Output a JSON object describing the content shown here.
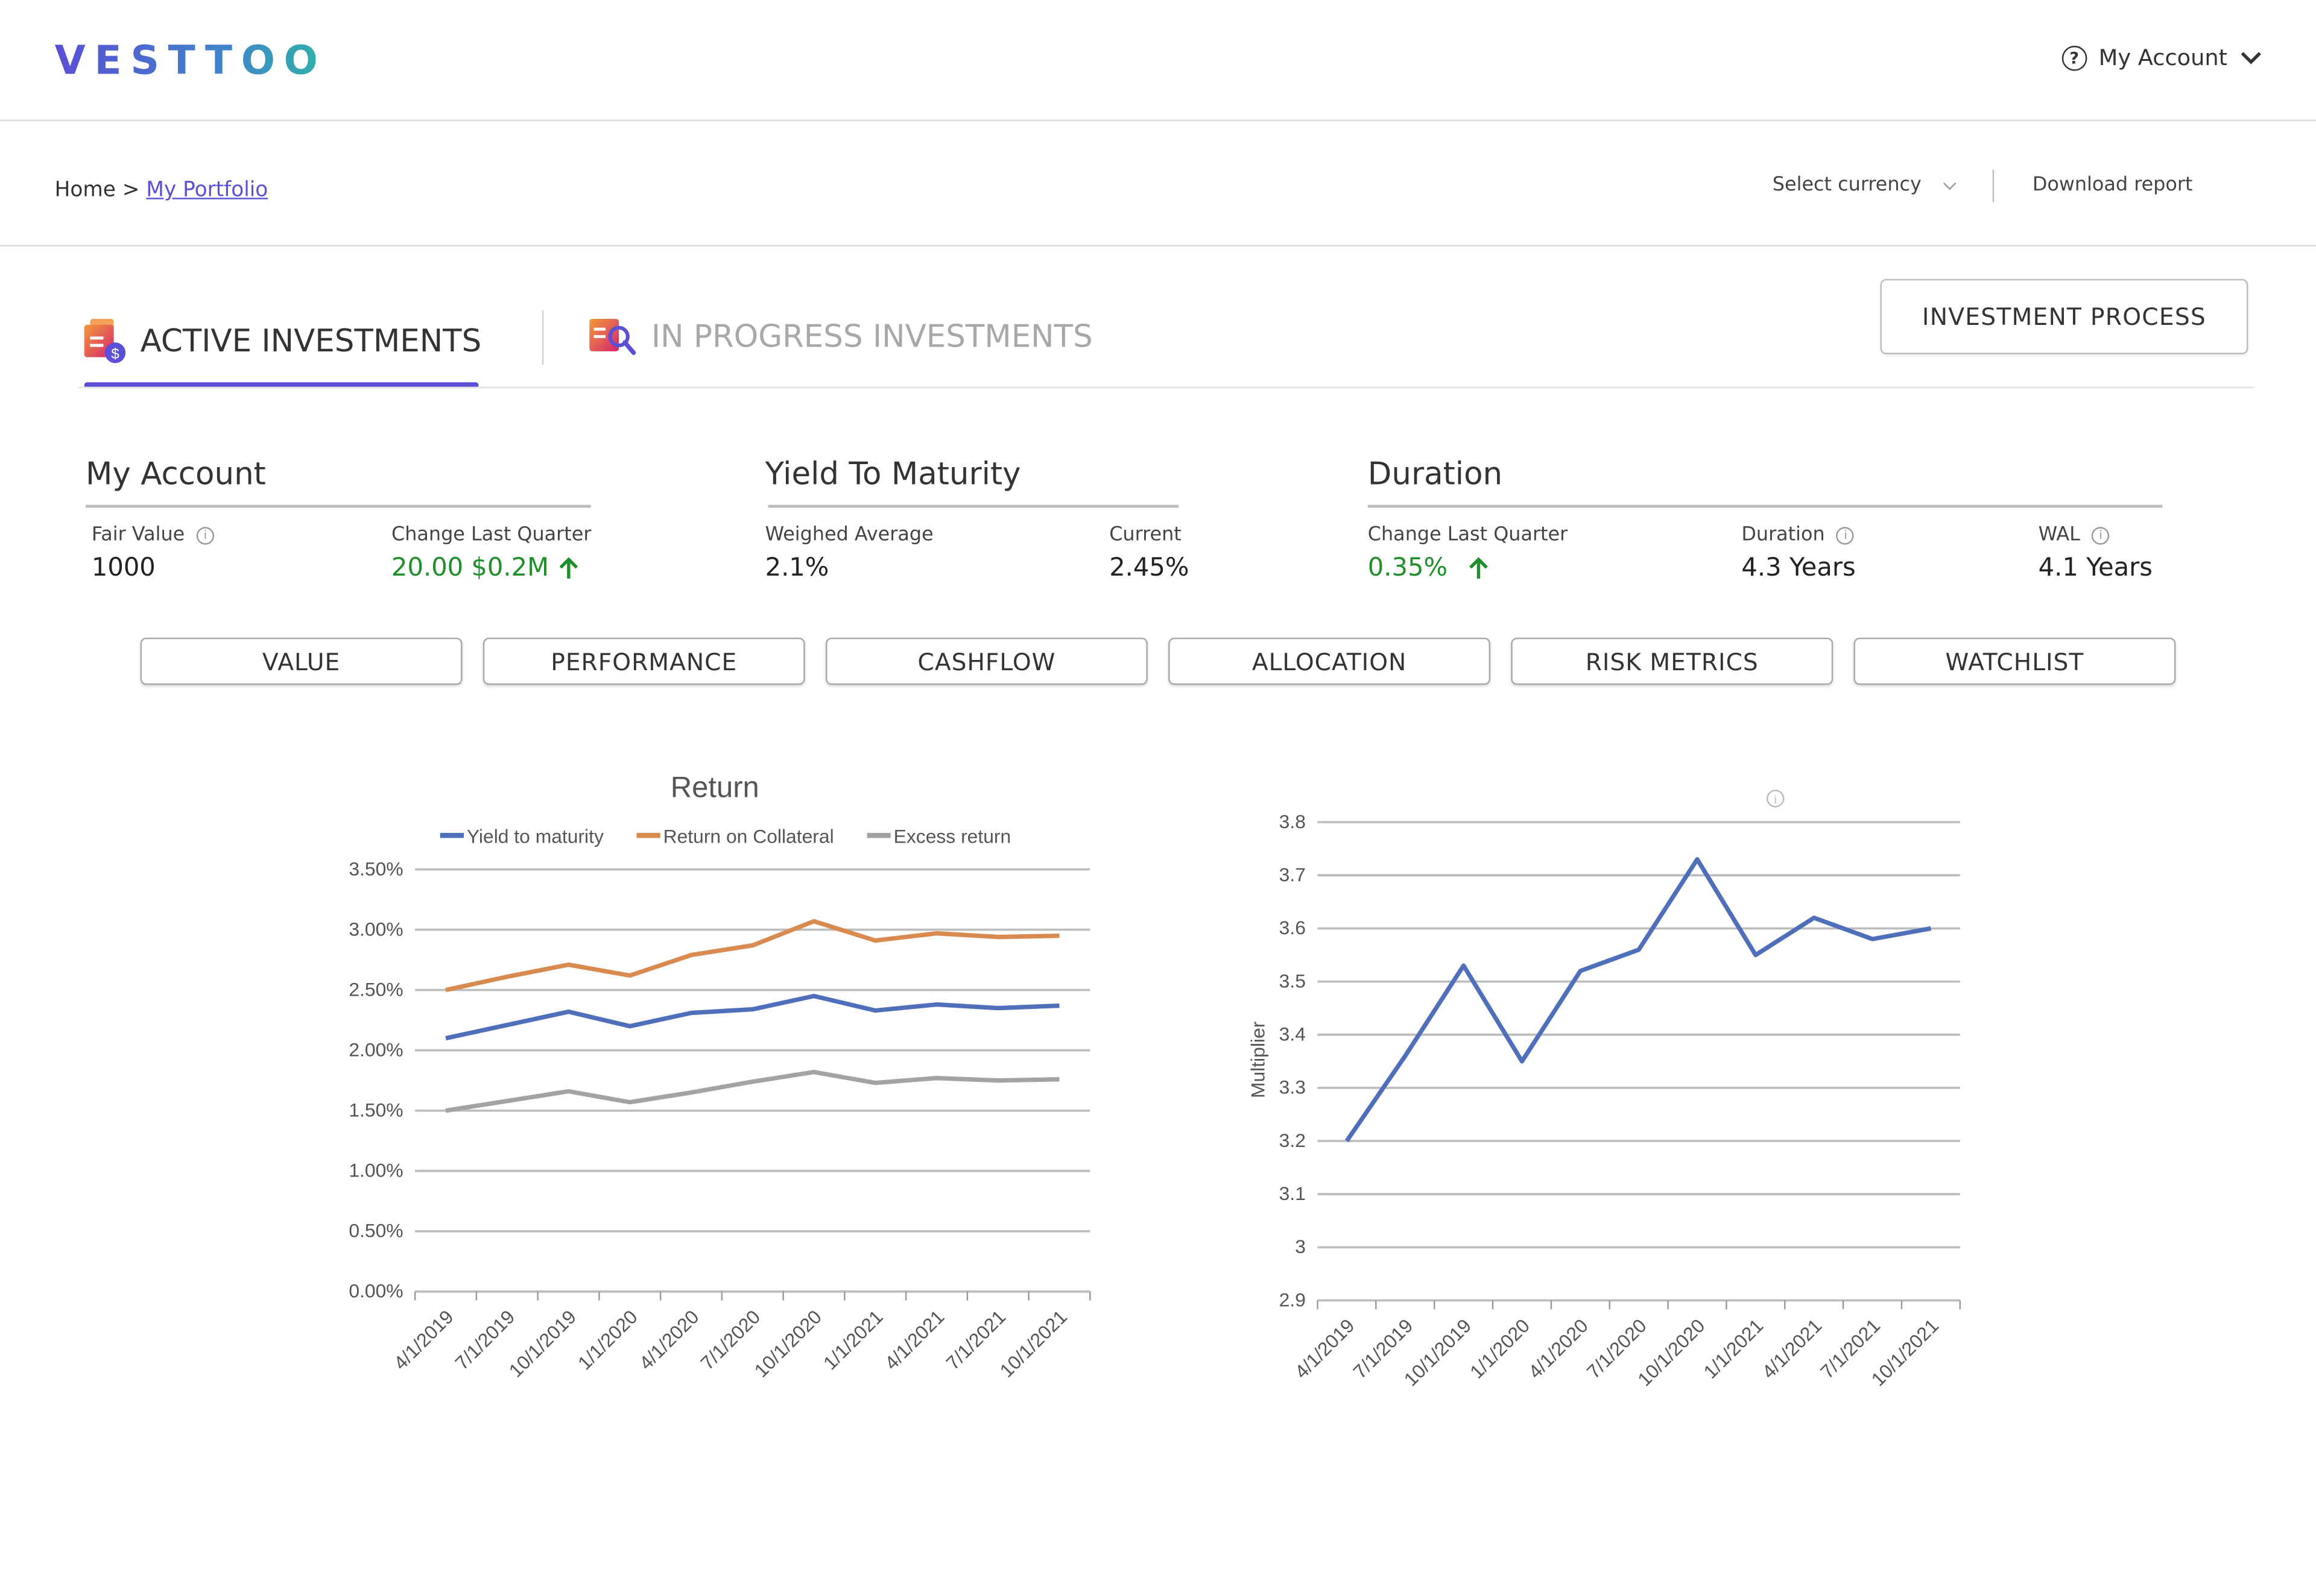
{
  "header": {
    "logo": "VESTTOO",
    "help_glyph": "?",
    "account_label": "My Account"
  },
  "breadcrumb": {
    "home": "Home",
    "sep": ">",
    "current": "My Portfolio"
  },
  "toolbar": {
    "currency_placeholder": "Select currency",
    "download_label": "Download report"
  },
  "tabs": {
    "active_label": "ACTIVE INVESTMENTS",
    "other_label": "IN PROGRESS INVESTMENTS",
    "process_button": "INVESTMENT PROCESS"
  },
  "summary": {
    "my_account": {
      "title": "My Account",
      "fair_value_label": "Fair Value",
      "fair_value": "1000",
      "change_label": "Change Last Quarter",
      "change_value": "20.00 $0.2M"
    },
    "ytm": {
      "title": "Yield To Maturity",
      "weighted_label": "Weighed Average",
      "weighted_value": "2.1%",
      "current_label": "Current",
      "current_value": "2.45%"
    },
    "duration": {
      "title": "Duration",
      "change_label": "Change Last Quarter",
      "change_value": "0.35%",
      "duration_label": "Duration",
      "duration_value": "4.3 Years",
      "wal_label": "WAL",
      "wal_value": "4.1 Years"
    }
  },
  "view_tabs": [
    "VALUE",
    "PERFORMANCE",
    "CASHFLOW",
    "ALLOCATION",
    "RISK METRICS",
    "WATCHLIST"
  ],
  "colors": {
    "accent": "#5a4fd6",
    "positive": "#1f8f2a",
    "series_ytm": "#4f6fbb",
    "series_collateral": "#d98a4e",
    "series_excess": "#a3a3a3"
  },
  "chart_data": [
    {
      "type": "line",
      "title": "Return",
      "x": [
        "4/1/2019",
        "7/1/2019",
        "10/1/2019",
        "1/1/2020",
        "4/1/2020",
        "7/1/2020",
        "10/1/2020",
        "1/1/2021",
        "4/1/2021",
        "7/1/2021",
        "10/1/2021"
      ],
      "series": [
        {
          "name": "Yield to maturity",
          "values": [
            2.1,
            2.21,
            2.32,
            2.2,
            2.31,
            2.34,
            2.45,
            2.33,
            2.38,
            2.35,
            2.37
          ]
        },
        {
          "name": "Return on Collateral",
          "values": [
            2.5,
            2.61,
            2.71,
            2.62,
            2.79,
            2.87,
            3.07,
            2.91,
            2.97,
            2.94,
            2.95
          ]
        },
        {
          "name": "Excess return",
          "values": [
            1.5,
            1.58,
            1.66,
            1.57,
            1.65,
            1.74,
            1.82,
            1.73,
            1.77,
            1.75,
            1.76
          ]
        }
      ],
      "y_ticks": [
        "0.00%",
        "0.50%",
        "1.00%",
        "1.50%",
        "2.00%",
        "2.50%",
        "3.00%",
        "3.50%"
      ],
      "ylim": [
        0,
        3.5
      ],
      "grid": true,
      "legend": "top"
    },
    {
      "type": "line",
      "title": "",
      "ylabel": "Multiplier",
      "x": [
        "4/1/2019",
        "7/1/2019",
        "10/1/2019",
        "1/1/2020",
        "4/1/2020",
        "7/1/2020",
        "10/1/2020",
        "1/1/2021",
        "4/1/2021",
        "7/1/2021",
        "10/1/2021"
      ],
      "series": [
        {
          "values": [
            3.2,
            3.36,
            3.53,
            3.35,
            3.52,
            3.56,
            3.73,
            3.55,
            3.62,
            3.58,
            3.6
          ]
        }
      ],
      "y_ticks": [
        "2.9",
        "3",
        "3.1",
        "3.2",
        "3.3",
        "3.4",
        "3.5",
        "3.6",
        "3.7",
        "3.8"
      ],
      "ylim": [
        2.9,
        3.8
      ],
      "grid": true
    }
  ]
}
